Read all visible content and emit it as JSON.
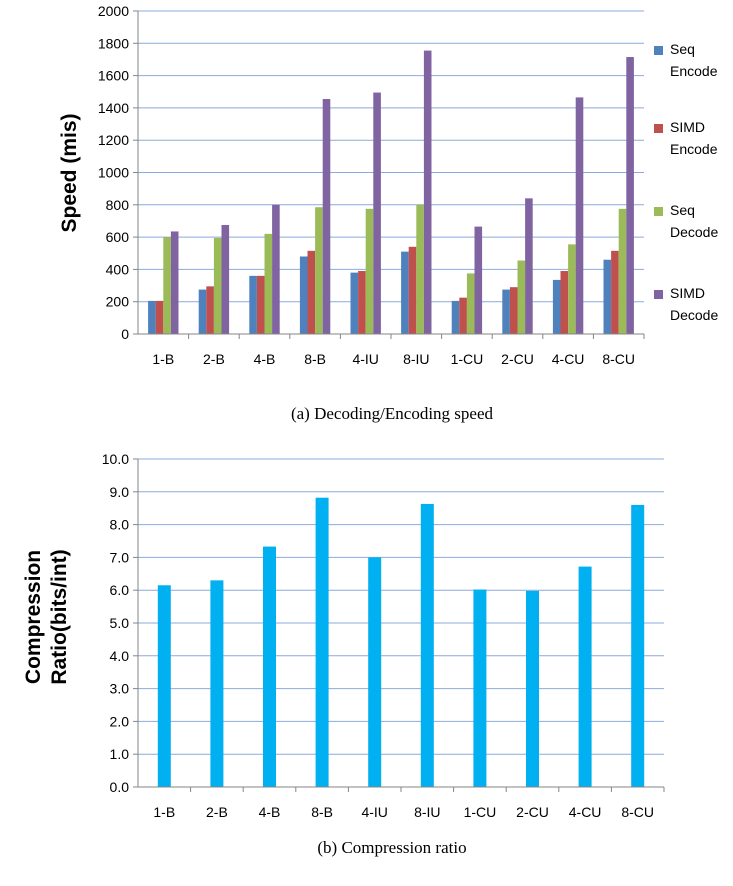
{
  "chart_data": [
    {
      "type": "bar",
      "caption": "(a) Decoding/Encoding speed",
      "ylabel": "Speed (mis)",
      "xlabel": "",
      "ylim": [
        0,
        2000
      ],
      "yticks": [
        0,
        200,
        400,
        600,
        800,
        1000,
        1200,
        1400,
        1600,
        1800,
        2000
      ],
      "grid": true,
      "legend": "right",
      "categories": [
        "1-B",
        "2-B",
        "4-B",
        "8-B",
        "4-IU",
        "8-IU",
        "1-CU",
        "2-CU",
        "4-CU",
        "8-CU"
      ],
      "series": [
        {
          "name": "Seq Encode",
          "legend_lines": [
            "Seq",
            "Encode"
          ],
          "color": "#4F81BD",
          "values": [
            205,
            275,
            360,
            480,
            380,
            510,
            205,
            275,
            335,
            460
          ]
        },
        {
          "name": "SIMD Encode",
          "legend_lines": [
            "SIMD",
            "Encode"
          ],
          "color": "#C0504D",
          "values": [
            205,
            295,
            360,
            515,
            390,
            540,
            225,
            290,
            390,
            515
          ]
        },
        {
          "name": "Seq Decode",
          "legend_lines": [
            "Seq",
            "Decode"
          ],
          "color": "#9BBB59",
          "values": [
            600,
            595,
            620,
            785,
            775,
            800,
            375,
            455,
            555,
            775
          ]
        },
        {
          "name": "SIMD Decode",
          "legend_lines": [
            "SIMD",
            "Decode"
          ],
          "color": "#8064A2",
          "values": [
            635,
            675,
            800,
            1455,
            1495,
            1755,
            665,
            840,
            1465,
            1715
          ]
        }
      ]
    },
    {
      "type": "bar",
      "caption": "(b) Compression ratio",
      "ylabel_lines": [
        "Compression",
        "Ratio(bits/int)"
      ],
      "xlabel": "",
      "ylim": [
        0,
        10
      ],
      "yticks": [
        "0.0",
        "1.0",
        "2.0",
        "3.0",
        "4.0",
        "5.0",
        "6.0",
        "7.0",
        "8.0",
        "9.0",
        "10.0"
      ],
      "grid": true,
      "legend": "none",
      "categories": [
        "1-B",
        "2-B",
        "4-B",
        "8-B",
        "4-IU",
        "8-IU",
        "1-CU",
        "2-CU",
        "4-CU",
        "8-CU"
      ],
      "series": [
        {
          "color": "#00B0F0",
          "values": [
            6.15,
            6.3,
            7.33,
            8.82,
            7.0,
            8.63,
            6.02,
            5.98,
            6.72,
            8.6
          ]
        }
      ]
    }
  ]
}
